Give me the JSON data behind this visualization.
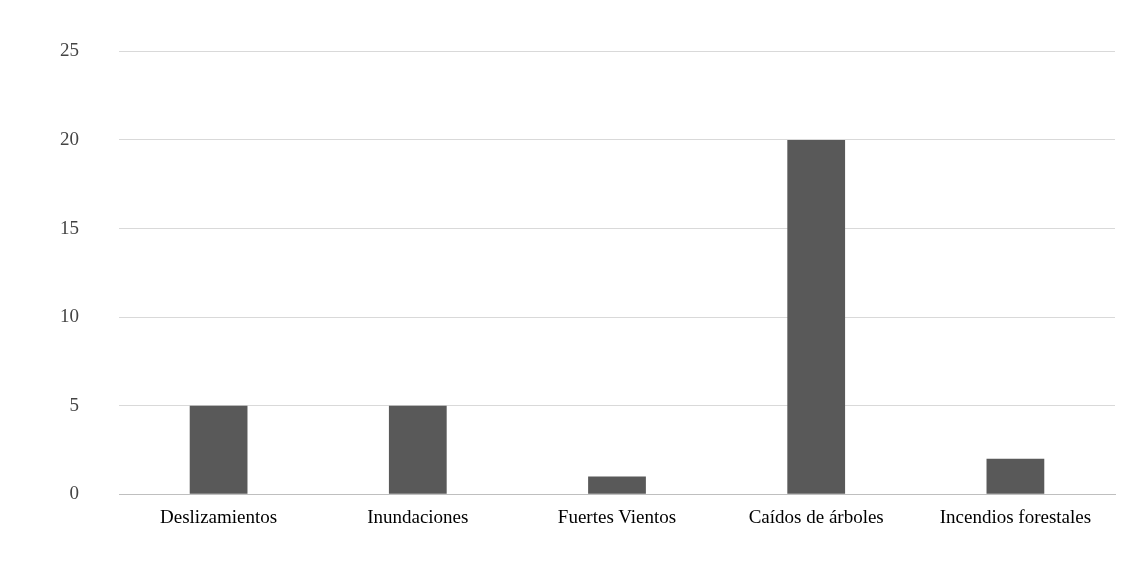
{
  "chart_data": {
    "type": "bar",
    "categories": [
      "Deslizamientos",
      "Inundaciones",
      "Fuertes Vientos",
      "Caídos de árboles",
      "Incendios forestales"
    ],
    "values": [
      5,
      5,
      1,
      20,
      2
    ],
    "color": "#595959",
    "ylim": [
      0,
      25
    ],
    "yticks": [
      0,
      5,
      10,
      15,
      20,
      25
    ],
    "grid": "y",
    "legend": false
  }
}
